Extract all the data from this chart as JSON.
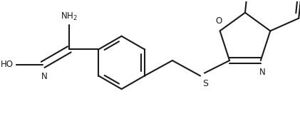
{
  "background_color": "#ffffff",
  "line_color": "#1a1a1a",
  "lw": 1.5,
  "figsize": [
    4.21,
    1.7
  ],
  "dpi": 100,
  "xlim": [
    0,
    4.21
  ],
  "ylim": [
    0,
    1.7
  ]
}
